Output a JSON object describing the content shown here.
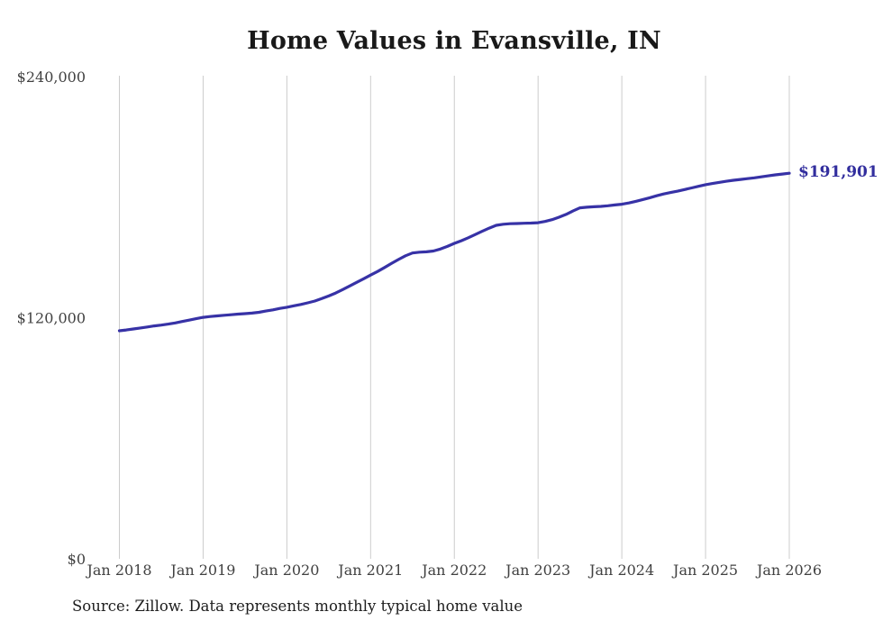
{
  "page": {
    "title": "Home Values in Evansville, IN",
    "source_note": "Source: Zillow. Data represents monthly typical home value"
  },
  "chart_data": {
    "type": "line",
    "title": "Home Values in Evansville, IN",
    "xlabel": "",
    "ylabel": "",
    "frequency": "monthly",
    "x_start": "2018-01",
    "x_end": "2026-01",
    "x_tick_labels": [
      "Jan 2018",
      "Jan 2019",
      "Jan 2020",
      "Jan 2021",
      "Jan 2022",
      "Jan 2023",
      "Jan 2024",
      "Jan 2025",
      "Jan 2026"
    ],
    "y_ticks": [
      {
        "value": 0,
        "label": "$0"
      },
      {
        "value": 120000,
        "label": "$120,000"
      },
      {
        "value": 240000,
        "label": "$240,000"
      }
    ],
    "ylim": [
      0,
      240000
    ],
    "grid": "vertical-only",
    "legend": "none",
    "series": [
      {
        "name": "Typical home value",
        "values": [
          113500,
          113900,
          114400,
          114900,
          115400,
          115900,
          116300,
          116800,
          117400,
          118100,
          118800,
          119500,
          120200,
          120600,
          120900,
          121200,
          121500,
          121800,
          122000,
          122300,
          122700,
          123300,
          123900,
          124600,
          125200,
          125900,
          126600,
          127400,
          128300,
          129500,
          130800,
          132300,
          134000,
          135800,
          137600,
          139400,
          141200,
          143000,
          145000,
          147000,
          149000,
          150800,
          152200,
          152600,
          152800,
          153200,
          154200,
          155500,
          157000,
          158300,
          159800,
          161400,
          163000,
          164600,
          166000,
          166500,
          166800,
          166900,
          167000,
          167100,
          167300,
          167900,
          168800,
          170000,
          171400,
          173100,
          174700,
          175000,
          175200,
          175400,
          175700,
          176100,
          176500,
          177100,
          177900,
          178800,
          179700,
          180700,
          181600,
          182300,
          183000,
          183800,
          184600,
          185400,
          186200,
          186800,
          187400,
          187900,
          188400,
          188800,
          189200,
          189600,
          190100,
          190600,
          191100,
          191500,
          191901
        ]
      }
    ],
    "end_label": "$191,901",
    "end_value": 191901,
    "colors": {
      "line": "#3732a6",
      "end_label": "#322e9e",
      "grid": "#cccccc",
      "axis_text": "#414141",
      "title_text": "#191919"
    }
  }
}
